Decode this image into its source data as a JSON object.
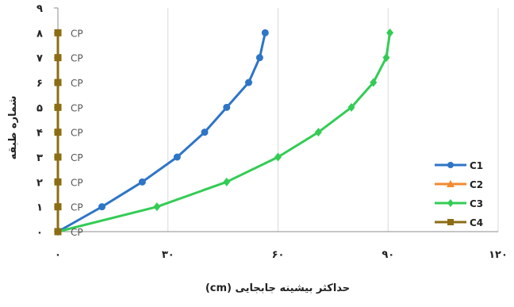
{
  "chart_data": {
    "type": "line",
    "xlabel": "حداکثر بیشینه جابجایی (cm)",
    "ylabel": "شماره طبقه",
    "xlim": [
      0,
      120
    ],
    "ylim": [
      0,
      9
    ],
    "x_ticks": [
      {
        "value": 0,
        "label": "۰"
      },
      {
        "value": 30,
        "label": "۳۰"
      },
      {
        "value": 60,
        "label": "۶۰"
      },
      {
        "value": 90,
        "label": "۹۰"
      },
      {
        "value": 120,
        "label": "۱۲۰"
      }
    ],
    "y_ticks": [
      {
        "value": 0,
        "label": "۰"
      },
      {
        "value": 1,
        "label": "۱"
      },
      {
        "value": 2,
        "label": "۲"
      },
      {
        "value": 3,
        "label": "۳"
      },
      {
        "value": 4,
        "label": "۴"
      },
      {
        "value": 5,
        "label": "۵"
      },
      {
        "value": 6,
        "label": "۶"
      },
      {
        "value": 7,
        "label": "۷"
      },
      {
        "value": 8,
        "label": "۸"
      },
      {
        "value": 9,
        "label": "۹"
      }
    ],
    "grid": {
      "vertical": true,
      "horizontal": false
    },
    "legend_position": "right",
    "series": [
      {
        "name": "C1",
        "color": "#2E75C6",
        "marker": "circle",
        "points": [
          [
            0,
            0
          ],
          [
            12,
            1
          ],
          [
            23,
            2
          ],
          [
            32.5,
            3
          ],
          [
            40,
            4
          ],
          [
            46,
            5
          ],
          [
            52,
            6
          ],
          [
            55,
            7
          ],
          [
            56.5,
            8
          ]
        ]
      },
      {
        "name": "C2",
        "color": "#F28A30",
        "marker": "triangle",
        "points": []
      },
      {
        "name": "C3",
        "color": "#33CC55",
        "marker": "diamond",
        "points": [
          [
            0,
            0
          ],
          [
            27,
            1
          ],
          [
            46,
            2
          ],
          [
            60,
            3
          ],
          [
            71,
            4
          ],
          [
            80,
            5
          ],
          [
            86,
            6
          ],
          [
            89.5,
            7
          ],
          [
            90.5,
            8
          ]
        ]
      },
      {
        "name": "C4",
        "color": "#8C6D14",
        "marker": "square",
        "points": [
          [
            0,
            0
          ],
          [
            0,
            1
          ],
          [
            0,
            2
          ],
          [
            0,
            3
          ],
          [
            0,
            4
          ],
          [
            0,
            5
          ],
          [
            0,
            6
          ],
          [
            0,
            7
          ],
          [
            0,
            8
          ]
        ]
      }
    ],
    "annotations": [
      {
        "text": "CP",
        "x": 0,
        "y": 0
      },
      {
        "text": "CP",
        "x": 0,
        "y": 1
      },
      {
        "text": "CP",
        "x": 0,
        "y": 2
      },
      {
        "text": "CP",
        "x": 0,
        "y": 3
      },
      {
        "text": "CP",
        "x": 0,
        "y": 4
      },
      {
        "text": "CP",
        "x": 0,
        "y": 5
      },
      {
        "text": "CP",
        "x": 0,
        "y": 6
      },
      {
        "text": "CP",
        "x": 0,
        "y": 7
      },
      {
        "text": "CP",
        "x": 0,
        "y": 8
      }
    ]
  }
}
